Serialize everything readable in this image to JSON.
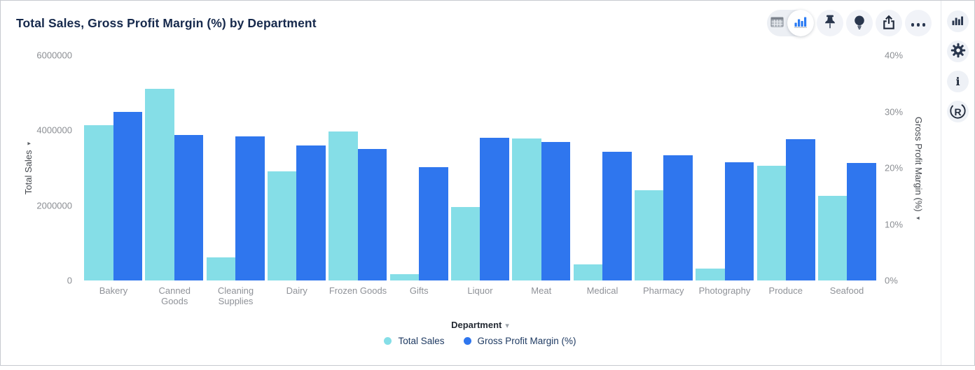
{
  "header": {
    "title": "Total Sales, Gross Profit Margin (%) by Department"
  },
  "toolbar": {
    "icons": [
      "table-view-icon",
      "bar-chart-view-icon",
      "pin-icon",
      "lightbulb-icon",
      "export-icon",
      "more-ellipsis-icon"
    ],
    "selected_view": "bar-chart"
  },
  "sidebar": {
    "icons": [
      "chart-type-icon",
      "settings-gear-icon",
      "info-icon",
      "reveal-r-logo-icon"
    ],
    "info_glyph": "i",
    "logo_glyph": "R"
  },
  "colors": {
    "sales": "#85DEE7",
    "margin": "#2F76EE",
    "icon_navy": "#29364d",
    "accent_blue": "#2b7bf3"
  },
  "chart_data": {
    "type": "bar",
    "title": "Total Sales, Gross Profit Margin (%) by Department",
    "categories": [
      "Bakery",
      "Canned Goods",
      "Cleaning Supplies",
      "Dairy",
      "Frozen Goods",
      "Gifts",
      "Liquor",
      "Meat",
      "Medical",
      "Pharmacy",
      "Photography",
      "Produce",
      "Seafood"
    ],
    "series": [
      {
        "name": "Total Sales",
        "axis": "left",
        "color": "#85DEE7",
        "values": [
          4140000,
          5110000,
          610000,
          2900000,
          3960000,
          170000,
          1950000,
          3790000,
          430000,
          2400000,
          320000,
          3050000,
          2250000
        ]
      },
      {
        "name": "Gross Profit Margin (%)",
        "axis": "right",
        "color": "#2F76EE",
        "values": [
          30.0,
          25.8,
          25.6,
          24.0,
          23.3,
          20.1,
          25.3,
          24.6,
          22.8,
          22.2,
          21.0,
          25.1,
          20.9
        ]
      }
    ],
    "xlabel": "Department",
    "left_axis": {
      "label": "Total Sales",
      "max": 6000000,
      "ticks": [
        "6000000",
        "4000000",
        "2000000",
        "0"
      ]
    },
    "right_axis": {
      "label": "Gross Profit Margin (%)",
      "max": 40,
      "ticks": [
        "40%",
        "30%",
        "20%",
        "10%",
        "0%"
      ]
    },
    "legend": [
      "Total Sales",
      "Gross Profit Margin (%)"
    ],
    "legend_position": "bottom",
    "grid": false,
    "caret": "▾"
  }
}
